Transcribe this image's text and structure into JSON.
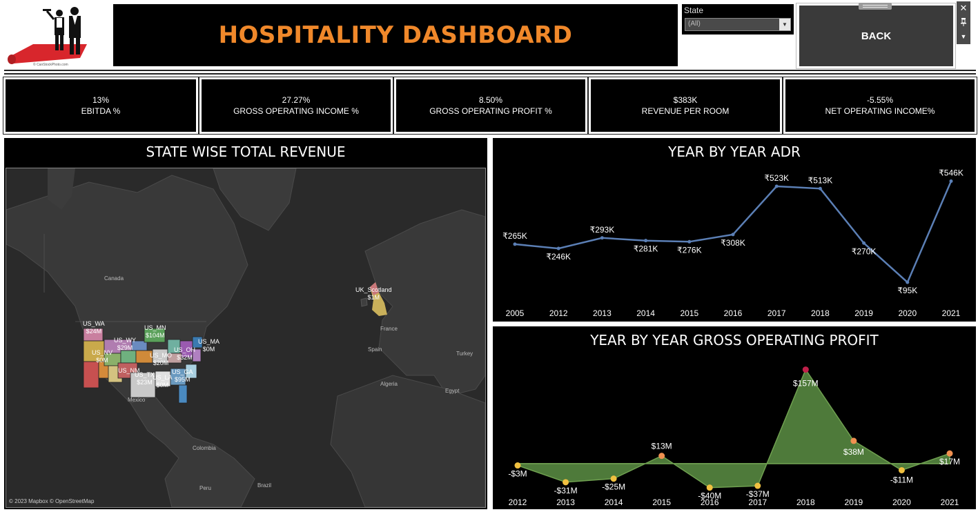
{
  "header": {
    "title": "HOSPITALITY DASHBOARD",
    "logo_caption": "© CanStockPhoto.com"
  },
  "filter": {
    "label": "State",
    "value": "(All)"
  },
  "back_button": {
    "label": "BACK"
  },
  "window_tools": [
    "close-icon",
    "pin-icon",
    "dropdown-icon"
  ],
  "kpis": [
    {
      "value": "13%",
      "label": "EBITDA %"
    },
    {
      "value": "27.27%",
      "label": "GROSS OPERATING INCOME %"
    },
    {
      "value": "8.50%",
      "label": "GROSS OPERATING PROFIT %"
    },
    {
      "value": "$383K",
      "label": "REVENUE PER ROOM"
    },
    {
      "value": "-5.55%",
      "label": "NET OPERATING INCOME%"
    }
  ],
  "map": {
    "title": "STATE WISE TOTAL REVENUE",
    "attribution": "© 2023 Mapbox © OpenStreetMap",
    "place_labels": [
      "Canada",
      "France",
      "Spain",
      "Turkey",
      "Algeria",
      "Egypt",
      "Mexico",
      "Colombia",
      "Peru",
      "Brazil"
    ],
    "state_labels": [
      {
        "name": "US_WA",
        "value": "$24M"
      },
      {
        "name": "US_MN",
        "value": "$104M"
      },
      {
        "name": "US_WY",
        "value": "$29M"
      },
      {
        "name": "US_NV",
        "value": "$0M"
      },
      {
        "name": "US_OH",
        "value": "$32M"
      },
      {
        "name": "US_MO",
        "value": "$20M"
      },
      {
        "name": "US_MA",
        "value": "$0M"
      },
      {
        "name": "US_NM",
        "value": ""
      },
      {
        "name": "US_TX",
        "value": "$23M"
      },
      {
        "name": "US_LA",
        "value": "$0M"
      },
      {
        "name": "US_GA",
        "value": "$95M"
      },
      {
        "name": "UK_Scotland",
        "value": "$1M"
      }
    ]
  },
  "chart_data": [
    {
      "type": "line",
      "title": "YEAR BY YEAR ADR",
      "categories": [
        "2005",
        "2012",
        "2013",
        "2014",
        "2015",
        "2016",
        "2017",
        "2018",
        "2019",
        "2020",
        "2021"
      ],
      "series": [
        {
          "values": [
            265,
            246,
            293,
            281,
            276,
            308,
            523,
            513,
            270,
            95,
            546
          ]
        }
      ],
      "data_labels": [
        "₹265K",
        "₹246K",
        "₹293K",
        "₹281K",
        "₹276K",
        "₹308K",
        "₹523K",
        "₹513K",
        "₹270K",
        "₹95K",
        "₹546K"
      ],
      "color": "#5b7fb5"
    },
    {
      "type": "area",
      "title": "YEAR BY YEAR GROSS OPERATING PROFIT",
      "categories": [
        "2012",
        "2013",
        "2014",
        "2015",
        "2016",
        "2017",
        "2018",
        "2019",
        "2020",
        "2021"
      ],
      "series": [
        {
          "values": [
            -3,
            -31,
            -25,
            13,
            -40,
            -37,
            157,
            38,
            -11,
            17
          ]
        }
      ],
      "data_labels": [
        "-$3M",
        "-$31M",
        "-$25M",
        "$13M",
        "-$40M",
        "-$37M",
        "$157M",
        "$38M",
        "-$11M",
        "$17M"
      ],
      "fill_color": "#4e7a3a",
      "point_colors": [
        "#f0c040",
        "#f0c040",
        "#f0c040",
        "#f09050",
        "#f0c040",
        "#f0c040",
        "#c0204a",
        "#f09050",
        "#f0c040",
        "#f09050"
      ]
    }
  ]
}
